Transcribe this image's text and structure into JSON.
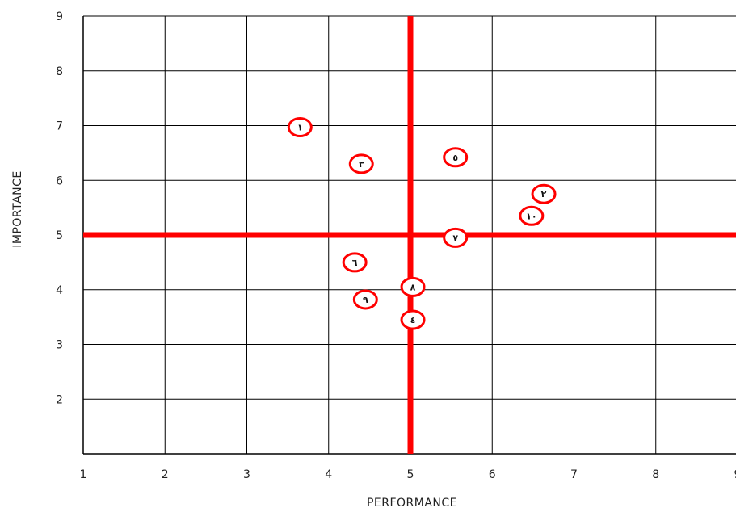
{
  "chart_data": {
    "type": "scatter",
    "title": "",
    "xlabel": "PERFORMANCE",
    "ylabel": "IMPORTANCE",
    "xlim": [
      1,
      9
    ],
    "ylim": [
      1,
      9
    ],
    "x_ticks": [
      "1",
      "2",
      "3",
      "4",
      "5",
      "6",
      "7",
      "8",
      "9"
    ],
    "y_ticks": [
      "2",
      "3",
      "4",
      "5",
      "6",
      "7",
      "8",
      "9"
    ],
    "grid": true,
    "quadrant_lines": {
      "x": 5,
      "y": 5,
      "color": "#ff0000"
    },
    "marker_color": "#ff0000",
    "points": [
      {
        "label": "١",
        "x": 3.65,
        "y": 6.97
      },
      {
        "label": "٣",
        "x": 4.4,
        "y": 6.3
      },
      {
        "label": "٥",
        "x": 5.55,
        "y": 6.42
      },
      {
        "label": "٢",
        "x": 6.63,
        "y": 5.75
      },
      {
        "label": "١٠",
        "x": 6.48,
        "y": 5.35
      },
      {
        "label": "٧",
        "x": 5.55,
        "y": 4.95
      },
      {
        "label": "٦",
        "x": 4.32,
        "y": 4.5
      },
      {
        "label": "٨",
        "x": 5.03,
        "y": 4.05
      },
      {
        "label": "٩",
        "x": 4.45,
        "y": 3.82
      },
      {
        "label": "٤",
        "x": 5.03,
        "y": 3.45
      }
    ]
  }
}
